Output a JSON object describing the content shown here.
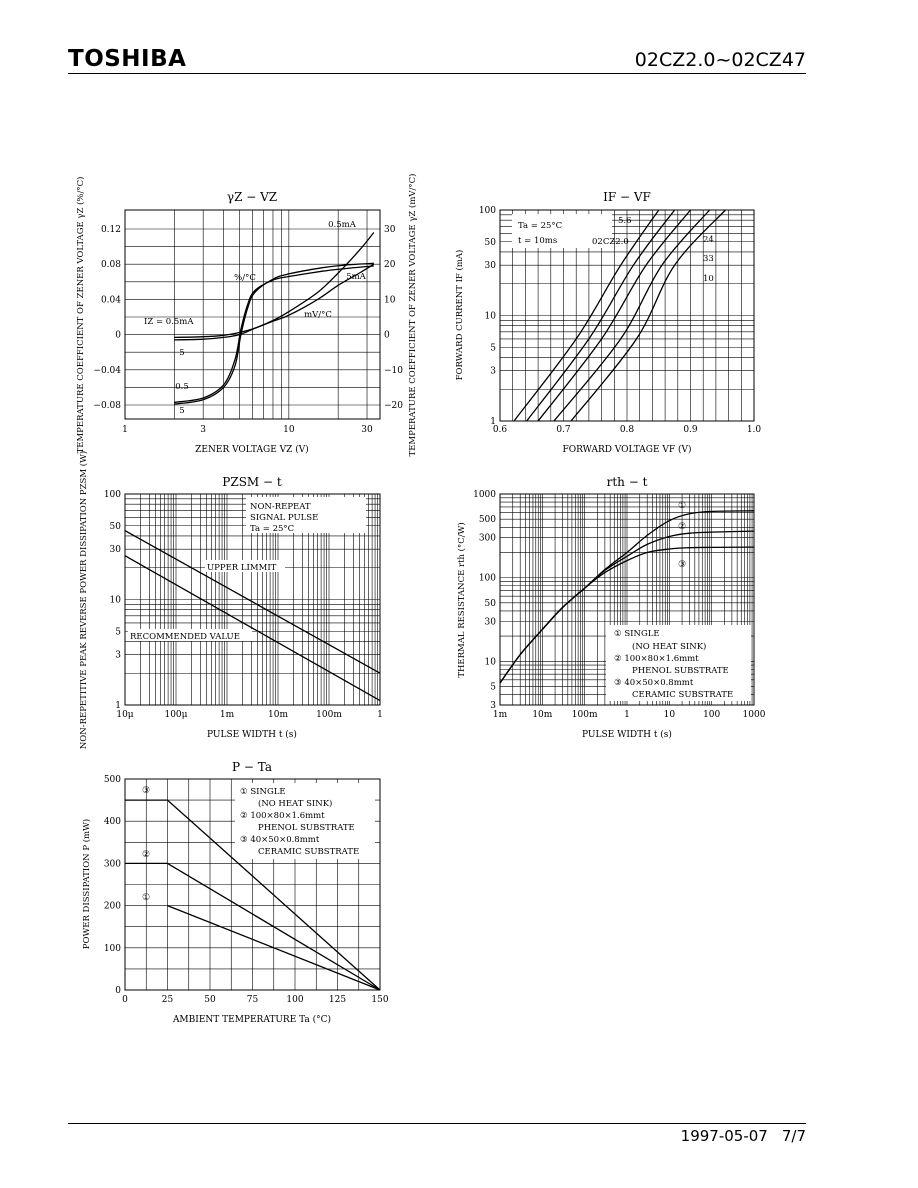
{
  "header": {
    "brand": "TOSHIBA",
    "part_number": "02CZ2.0~02CZ47"
  },
  "footer": {
    "date": "1997-05-07",
    "page": "7/7"
  },
  "chart_data": [
    {
      "id": "gz",
      "type": "line",
      "title": "γZ − VZ",
      "xlabel": "ZENER VOLTAGE   VZ   (V)",
      "ylabel": "TEMPERATURE COEFFICIENT OF ZENER VOLTAGE   γZ   (%/°C)",
      "y2label": "TEMPERATURE COEFFICIENT OF ZENER VOLTAGE   γZ   (mV/°C)",
      "x_scale": "log",
      "xlim": [
        1,
        36
      ],
      "ylim": [
        -0.08,
        0.12
      ],
      "y2lim": [
        -20,
        30
      ],
      "xticks": [
        "1",
        "3",
        "10",
        "30"
      ],
      "yticks": [
        "0.12",
        "0.08",
        "0.04",
        "0",
        "−0.04",
        "−0.08"
      ],
      "y2ticks": [
        "30",
        "20",
        "10",
        "0",
        "−10",
        "−20"
      ],
      "annotations": [
        "IZ = 0.5mA",
        "%/°C",
        "mV/°C",
        "0.5mA",
        "5mA",
        "5",
        "0.5",
        "5"
      ],
      "series": [
        {
          "axis": "pct",
          "x": [
            2,
            3,
            4,
            4.7,
            5.1,
            5.6,
            6.2,
            8,
            10,
            16,
            22,
            33
          ],
          "y": [
            -0.079,
            -0.074,
            -0.06,
            -0.035,
            0.0,
            0.03,
            0.048,
            0.063,
            0.069,
            0.076,
            0.079,
            0.081
          ]
        },
        {
          "axis": "pct",
          "x": [
            2,
            3,
            4,
            4.7,
            5.1,
            5.6,
            6.2,
            8,
            10,
            16,
            22,
            33
          ],
          "y": [
            -0.077,
            -0.072,
            -0.057,
            -0.028,
            0.006,
            0.034,
            0.05,
            0.062,
            0.066,
            0.072,
            0.075,
            0.078
          ]
        },
        {
          "axis": "mv",
          "x": [
            2,
            3,
            4,
            5,
            6,
            8,
            10,
            15,
            20,
            27,
            33
          ],
          "y": [
            -1.5,
            -1.3,
            -0.8,
            0.0,
            1.5,
            4.0,
            6.5,
            12.0,
            17.5,
            24.0,
            29.0
          ]
        },
        {
          "axis": "mv",
          "x": [
            2,
            3,
            4,
            5,
            6,
            8,
            10,
            15,
            20,
            27,
            33
          ],
          "y": [
            -0.8,
            -0.6,
            -0.2,
            0.6,
            1.6,
            3.8,
            5.5,
            10.0,
            14.0,
            17.5,
            20.0
          ]
        }
      ]
    },
    {
      "id": "ifvf",
      "type": "line",
      "title": "IF − VF",
      "xlabel": "FORWARD VOLTAGE   VF   (V)",
      "ylabel": "FORWARD CURRENT   IF   (mA)",
      "y_scale": "log",
      "xlim": [
        0.6,
        1.0
      ],
      "ylim": [
        1,
        100
      ],
      "xticks": [
        "0.6",
        "0.7",
        "0.8",
        "0.9",
        "1.0"
      ],
      "yticks": [
        "100",
        "50",
        "30",
        "10",
        "5",
        "3",
        "1"
      ],
      "conditions": [
        "Ta = 25°C",
        "t = 10ms"
      ],
      "series": [
        {
          "name": "5.6",
          "x": [
            0.622,
            0.72,
            0.79,
            0.85
          ],
          "y": [
            1,
            6,
            30,
            100
          ]
        },
        {
          "name": "02CZ2.0",
          "x": [
            0.642,
            0.74,
            0.81,
            0.875
          ],
          "y": [
            1,
            6,
            30,
            100
          ]
        },
        {
          "name": "24",
          "x": [
            0.66,
            0.76,
            0.83,
            0.9
          ],
          "y": [
            1,
            6,
            30,
            100
          ]
        },
        {
          "name": "33",
          "x": [
            0.685,
            0.79,
            0.855,
            0.93
          ],
          "y": [
            1,
            6,
            30,
            100
          ]
        },
        {
          "name": "10",
          "x": [
            0.712,
            0.815,
            0.875,
            0.955
          ],
          "y": [
            1,
            6,
            30,
            100
          ]
        }
      ]
    },
    {
      "id": "pzsm",
      "type": "line",
      "title": "PZSM − t",
      "xlabel": "PULSE WIDTH   t   (s)",
      "ylabel": "NON-REPETITIVE PEAK REVERSE POWER DISSIPATION   PZSM   (W)",
      "x_scale": "log",
      "y_scale": "log",
      "xlim": [
        1e-05,
        1
      ],
      "ylim": [
        1,
        100
      ],
      "xticks": [
        "10μ",
        "100μ",
        "1m",
        "10m",
        "100m",
        "1"
      ],
      "yticks": [
        "100",
        "50",
        "30",
        "10",
        "5",
        "3",
        "1"
      ],
      "conditions": [
        "NON-REPEAT",
        "SIGNAL PULSE",
        "Ta = 25°C"
      ],
      "series": [
        {
          "name": "UPPER LIMMIT",
          "x": [
            1e-05,
            1
          ],
          "y": [
            45,
            2
          ]
        },
        {
          "name": "RECOMMENDED VALUE",
          "x": [
            1e-05,
            1
          ],
          "y": [
            26,
            1.1
          ]
        }
      ]
    },
    {
      "id": "rth",
      "type": "line",
      "title": "rth − t",
      "xlabel": "PULSE WIDTH   t   (s)",
      "ylabel": "THERMAL RESISTANCE   rth   (°C/W)",
      "x_scale": "log",
      "y_scale": "log",
      "xlim": [
        0.001,
        1000
      ],
      "ylim": [
        3,
        1000
      ],
      "xticks": [
        "1m",
        "10m",
        "100m",
        "1",
        "10",
        "100",
        "1000"
      ],
      "yticks": [
        "1000",
        "500",
        "300",
        "100",
        "50",
        "30",
        "10",
        "5",
        "3"
      ],
      "legend": [
        "① SINGLE",
        "(NO HEAT SINK)",
        "② 100×80×1.6mmt",
        "PHENOL SUBSTRATE",
        "③ 40×50×0.8mmt",
        "CERAMIC SUBSTRATE"
      ],
      "series": [
        {
          "name": "①",
          "x": [
            0.001,
            0.003,
            0.01,
            0.03,
            0.1,
            0.3,
            1,
            3,
            10,
            30,
            100,
            1000
          ],
          "y": [
            5.5,
            12,
            24,
            44,
            75,
            125,
            200,
            320,
            480,
            580,
            620,
            630
          ]
        },
        {
          "name": "②",
          "x": [
            0.001,
            0.003,
            0.01,
            0.03,
            0.1,
            0.3,
            1,
            3,
            10,
            30,
            100,
            1000
          ],
          "y": [
            5.5,
            12,
            24,
            44,
            75,
            122,
            180,
            250,
            310,
            340,
            350,
            360
          ]
        },
        {
          "name": "③",
          "x": [
            0.001,
            0.003,
            0.01,
            0.03,
            0.1,
            0.3,
            1,
            3,
            10,
            30,
            100,
            1000
          ],
          "y": [
            5.5,
            12,
            24,
            44,
            75,
            115,
            160,
            200,
            220,
            228,
            230,
            232
          ]
        }
      ]
    },
    {
      "id": "pta",
      "type": "line",
      "title": "P − Ta",
      "xlabel": "AMBIENT TEMPERATURE   Ta   (°C)",
      "ylabel": "POWER DISSIPATION   P   (mW)",
      "xlim": [
        0,
        150
      ],
      "ylim": [
        0,
        500
      ],
      "xticks": [
        "0",
        "25",
        "50",
        "75",
        "100",
        "125",
        "150"
      ],
      "yticks": [
        "500",
        "400",
        "300",
        "200",
        "100",
        "0"
      ],
      "legend": [
        "① SINGLE",
        "(NO HEAT SINK)",
        "② 100×80×1.6mmt",
        "PHENOL SUBSTRATE",
        "③ 40×50×0.8mmt",
        "CERAMIC SUBSTRATE"
      ],
      "series": [
        {
          "name": "③",
          "x": [
            0,
            25,
            150
          ],
          "y": [
            450,
            450,
            0
          ]
        },
        {
          "name": "②",
          "x": [
            0,
            25,
            150
          ],
          "y": [
            300,
            300,
            0
          ]
        },
        {
          "name": "①",
          "x": [
            25,
            150
          ],
          "y": [
            200,
            0
          ]
        }
      ]
    }
  ]
}
